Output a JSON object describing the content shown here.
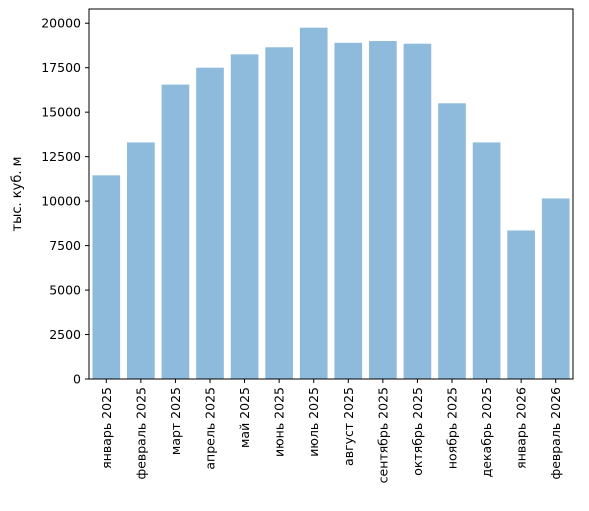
{
  "chart_data": {
    "type": "bar",
    "ylabel": "тыс. куб. м",
    "xlabel": "",
    "title": "",
    "ylim": [
      0,
      20800
    ],
    "yticks": [
      0,
      2500,
      5000,
      7500,
      10000,
      12500,
      15000,
      17500,
      20000
    ],
    "grid": false,
    "bar_color": "#8ebbdb",
    "categories": [
      "январь 2025",
      "февраль 2025",
      "март 2025",
      "апрель 2025",
      "май 2025",
      "июнь 2025",
      "июль 2025",
      "август 2025",
      "сентябрь 2025",
      "октябрь 2025",
      "ноябрь 2025",
      "декабрь 2025",
      "январь 2026",
      "февраль 2026"
    ],
    "values": [
      11450,
      13300,
      16550,
      17500,
      18250,
      18650,
      19750,
      18900,
      19000,
      18850,
      15500,
      13300,
      8350,
      10150
    ]
  }
}
